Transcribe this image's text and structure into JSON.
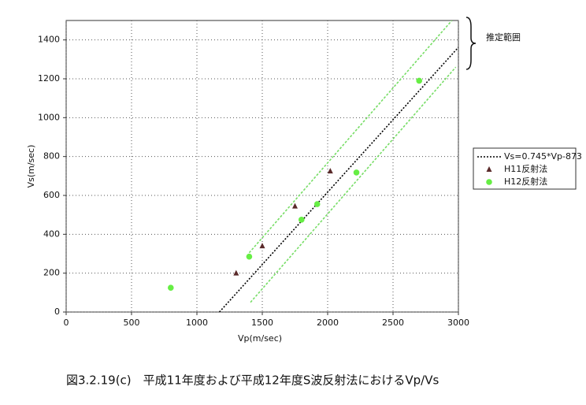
{
  "chart_data": {
    "type": "scatter",
    "xlabel": "Vp(m/sec)",
    "ylabel": "Vs(m/sec)",
    "caption": "図3.2.19(c)　平成11年度および平成12年度S波反射法におけるVp/Vs",
    "annotation": "推定範囲",
    "xlim": [
      0,
      3000
    ],
    "ylim": [
      0,
      1500
    ],
    "xticks": [
      0,
      500,
      1000,
      1500,
      2000,
      2500,
      3000
    ],
    "yticks": [
      0,
      200,
      400,
      600,
      800,
      1000,
      1200,
      1400
    ],
    "grid": true,
    "legend": "right",
    "series": [
      {
        "name": "Vs=0.745*Vp-873",
        "color": "#000000",
        "linestyle": "dotted",
        "x": [
          1172,
          3000
        ],
        "values": [
          0,
          1362
        ]
      },
      {
        "name": "H11反射法",
        "color": "#5a2a2a",
        "marker": "triangle",
        "x": [
          1300,
          1500,
          1750,
          2020
        ],
        "values": [
          200,
          340,
          545,
          725
        ]
      },
      {
        "name": "H12反射法",
        "color": "#66ee44",
        "marker": "circle",
        "x": [
          800,
          1400,
          1800,
          1920,
          2220,
          2700
        ],
        "values": [
          125,
          285,
          475,
          555,
          718,
          1190
        ]
      }
    ],
    "bands": [
      {
        "color": "#77dd66",
        "x": [
          1400,
          2950
        ],
        "values": [
          305,
          1500
        ]
      },
      {
        "color": "#77dd66",
        "x": [
          1410,
          2980
        ],
        "values": [
          50,
          1260
        ]
      }
    ]
  }
}
